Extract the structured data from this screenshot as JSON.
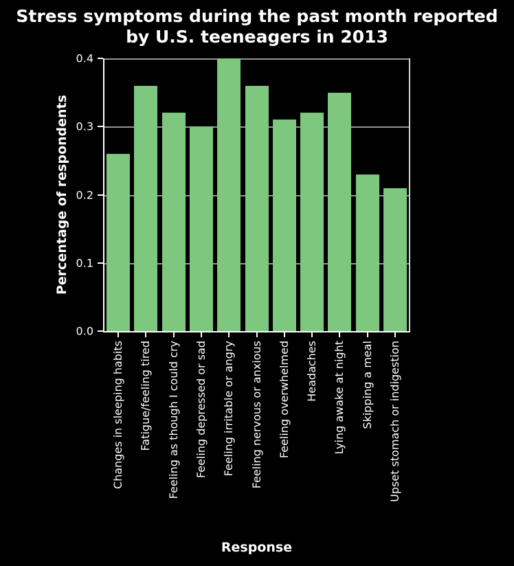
{
  "figure": {
    "title_lines": [
      "Stress symptoms during the past month reported",
      "by U.S. teeneagers in 2013"
    ]
  },
  "chart_data": {
    "type": "bar",
    "title": "Stress symptoms during the past month reported by U.S. teeneagers in 2013",
    "xlabel": "Response",
    "ylabel": "Percentage of respondents",
    "categories": [
      "Changes in sleeping habits",
      "Fatigue/feeling tired",
      "Feeling as though I could cry",
      "Feeling depressed or sad",
      "Feeling irritable or angry",
      "Feeling nervous or anxious",
      "Feeling overwhelmed",
      "Headaches",
      "Lying awake at night",
      "Skipping a meal",
      "Upset stomach or indigestion"
    ],
    "values": [
      0.26,
      0.36,
      0.32,
      0.3,
      0.4,
      0.36,
      0.31,
      0.32,
      0.35,
      0.23,
      0.21
    ],
    "ylim": [
      0.0,
      0.4
    ],
    "yticks": [
      0.0,
      0.1,
      0.2,
      0.3,
      0.4
    ],
    "ytick_labels": [
      "0.0",
      "0.1",
      "0.2",
      "0.3",
      "0.4"
    ],
    "grid": "horizontal gridlines behind bars",
    "legend_position": "none",
    "bar_color": "#7ec77e",
    "background_color": "#000000",
    "text_color": "#ffffff",
    "grid_color": "#969696"
  }
}
